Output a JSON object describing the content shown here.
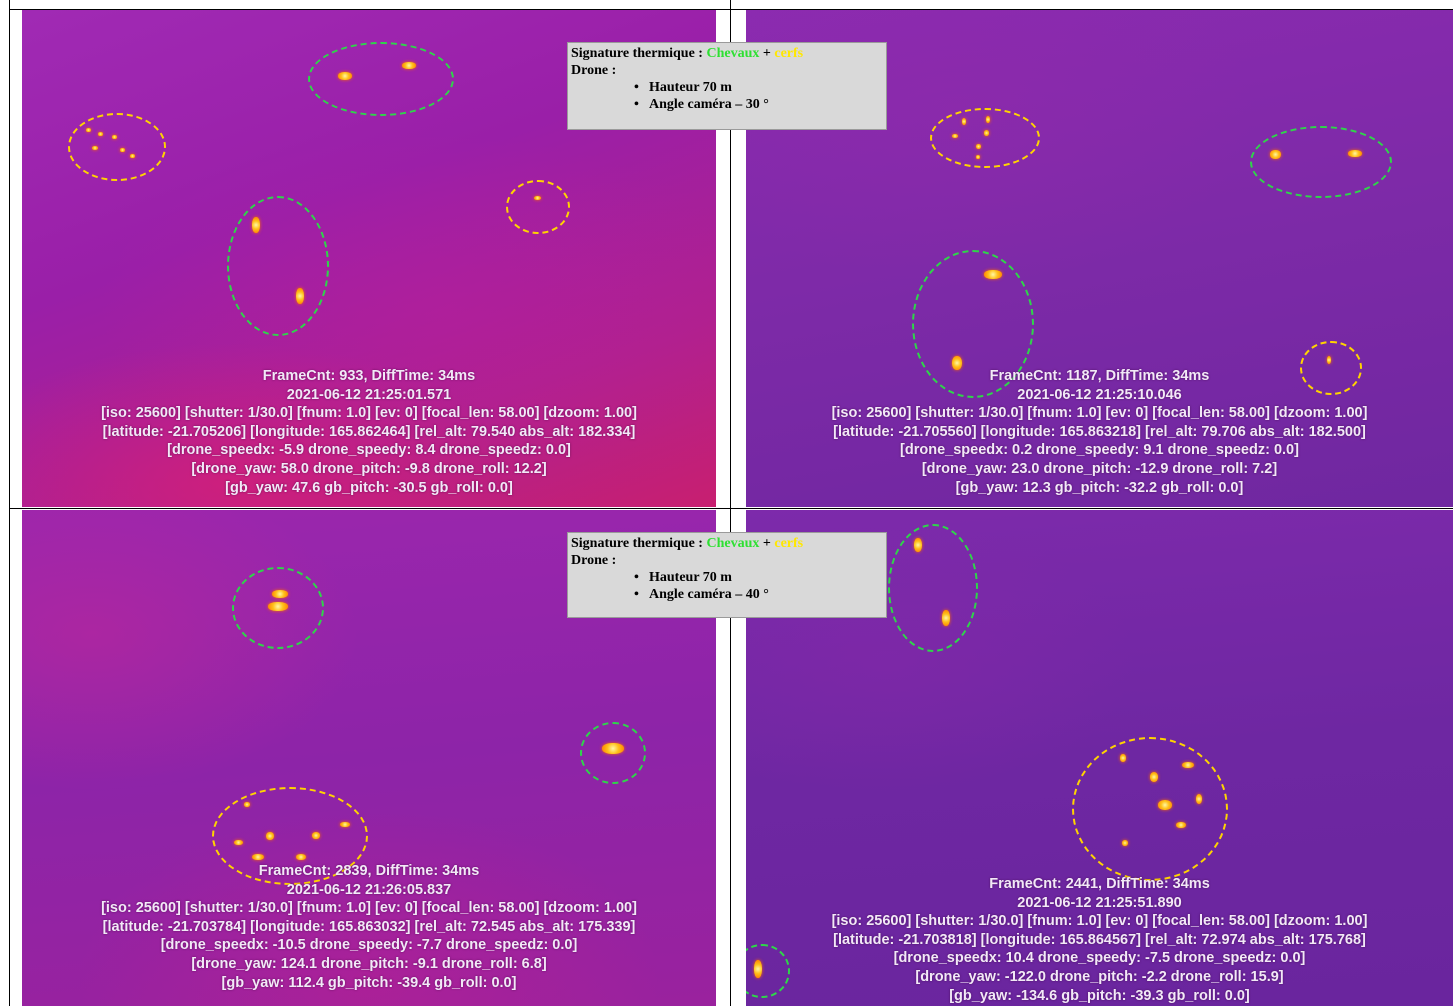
{
  "legend": [
    {
      "title": "Signature thermique :",
      "species_1": "Chevaux",
      "plus": "+",
      "species_2": "cerfs",
      "drone_label": "Drone :",
      "height": "Hauteur 70 m",
      "angle": "Angle caméra – 30 °"
    },
    {
      "title": "Signature thermique :",
      "species_1": "Chevaux",
      "plus": "+",
      "species_2": "cerfs",
      "drone_label": "Drone :",
      "height": "Hauteur 70 m",
      "angle": "Angle caméra – 40 °"
    }
  ],
  "colors": {
    "horses_circle": "#2fd54a",
    "deer_circle": "#ffd400",
    "thermal_background": "#8a20a8"
  },
  "panels": [
    {
      "overlay": [
        "FrameCnt: 933, DiffTime: 34ms",
        "2021-06-12 21:25:01.571",
        "[iso: 25600] [shutter: 1/30.0] [fnum: 1.0] [ev: 0] [focal_len: 58.00] [dzoom: 1.00]",
        "[latitude: -21.705206] [longitude: 165.862464] [rel_alt: 79.540 abs_alt: 182.334]",
        "[drone_speedx: -5.9 drone_speedy: 8.4 drone_speedz: 0.0]",
        "[drone_yaw: 58.0 drone_pitch: -9.8 drone_roll: 12.2]",
        "[gb_yaw: 47.6 gb_pitch: -30.5 gb_roll: 0.0]"
      ]
    },
    {
      "overlay": [
        "FrameCnt: 1187, DiffTime: 34ms",
        "2021-06-12 21:25:10.046",
        "[iso: 25600] [shutter: 1/30.0] [fnum: 1.0] [ev: 0] [focal_len: 58.00] [dzoom: 1.00]",
        "[latitude: -21.705560] [longitude: 165.863218] [rel_alt: 79.706 abs_alt: 182.500]",
        "[drone_speedx: 0.2 drone_speedy: 9.1 drone_speedz: 0.0]",
        "[drone_yaw: 23.0 drone_pitch: -12.9 drone_roll: 7.2]",
        "[gb_yaw: 12.3 gb_pitch: -32.2 gb_roll: 0.0]"
      ]
    },
    {
      "overlay": [
        "FrameCnt: 2839, DiffTime: 34ms",
        "2021-06-12 21:26:05.837",
        "[iso: 25600] [shutter: 1/30.0] [fnum: 1.0] [ev: 0] [focal_len: 58.00] [dzoom: 1.00]",
        "[latitude: -21.703784] [longitude: 165.863032] [rel_alt: 72.545 abs_alt: 175.339]",
        "[drone_speedx: -10.5 drone_speedy: -7.7 drone_speedz: 0.0]",
        "[drone_yaw: 124.1 drone_pitch: -9.1 drone_roll: 6.8]",
        "[gb_yaw: 112.4 gb_pitch: -39.4 gb_roll: 0.0]"
      ]
    },
    {
      "overlay": [
        "FrameCnt: 2441, DiffTime: 34ms",
        "2021-06-12 21:25:51.890",
        "[iso: 25600] [shutter: 1/30.0] [fnum: 1.0] [ev: 0] [focal_len: 58.00] [dzoom: 1.00]",
        "[latitude: -21.703818] [longitude: 165.864567] [rel_alt: 72.974 abs_alt: 175.768]",
        "[drone_speedx: 10.4 drone_speedy: -7.5 drone_speedz: 0.0]",
        "[drone_yaw: -122.0 drone_pitch: -2.2 drone_roll: 15.9]",
        "[gb_yaw: -134.6 gb_pitch: -39.3 gb_roll: 0.0]"
      ]
    }
  ]
}
